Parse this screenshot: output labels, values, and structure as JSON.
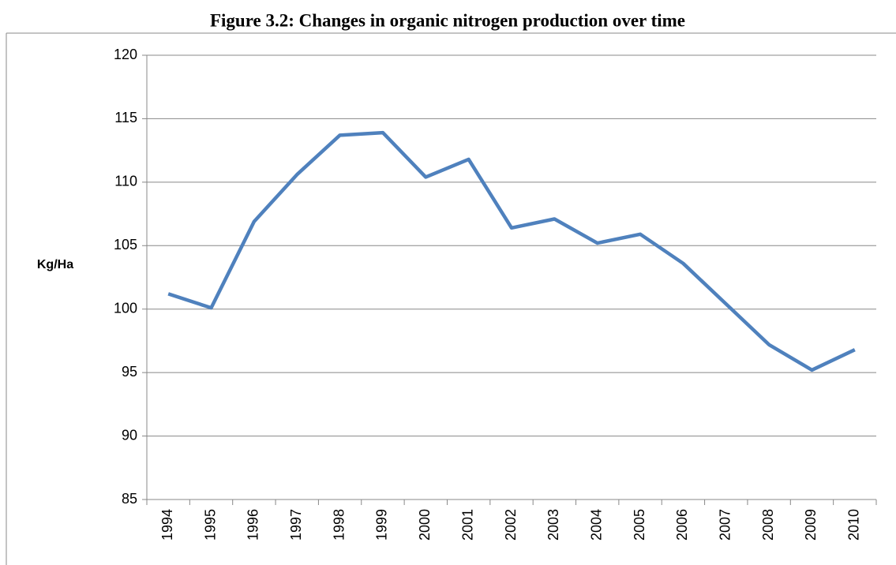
{
  "chart_data": {
    "type": "line",
    "title": "Figure 3.2: Changes in organic nitrogen production over time",
    "y_label": "Kg/Ha",
    "categories": [
      "1994",
      "1995",
      "1996",
      "1997",
      "1998",
      "1999",
      "2000",
      "2001",
      "2002",
      "2003",
      "2004",
      "2005",
      "2006",
      "2007",
      "2008",
      "2009",
      "2010"
    ],
    "series": [
      {
        "name": "Organic nitrogen",
        "color": "#4f81bd",
        "values": [
          101.2,
          100.1,
          106.9,
          110.6,
          113.7,
          113.9,
          110.4,
          111.8,
          106.4,
          107.1,
          105.2,
          105.9,
          103.6,
          100.4,
          97.2,
          95.2,
          96.8
        ]
      }
    ],
    "ylim": [
      85,
      120
    ],
    "yticks": [
      85,
      90,
      95,
      100,
      105,
      110,
      115,
      120
    ],
    "grid": true
  }
}
